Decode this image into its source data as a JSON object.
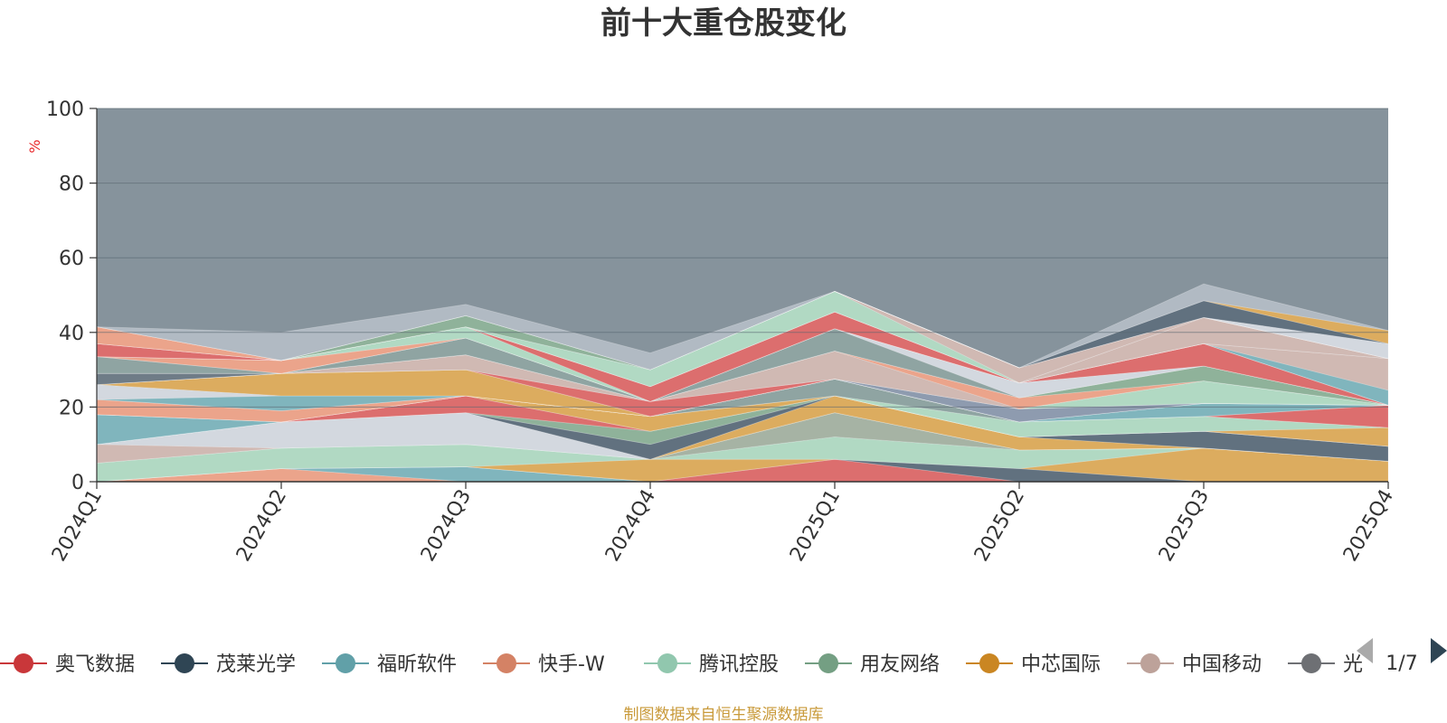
{
  "chart_data": {
    "type": "area",
    "title": "前十大重仓股变化",
    "ylabel": "%",
    "ylim": [
      0,
      100
    ],
    "y_ticks": [
      "0",
      "20",
      "40",
      "60",
      "80",
      "100"
    ],
    "categories": [
      "2024Q1",
      "2024Q2",
      "2024Q3",
      "2024Q4",
      "2025Q1",
      "2025Q2",
      "2025Q3",
      "2025Q4"
    ],
    "grid": true,
    "stacked": true,
    "background_color": "#86939c",
    "series": [
      {
        "name": "",
        "color": "#f0a48a",
        "values": [
          0,
          3.5,
          0,
          0,
          0,
          0,
          0,
          0
        ]
      },
      {
        "name": "",
        "color": "#7fb6bf",
        "values": [
          0,
          0,
          4,
          0,
          0,
          0,
          0,
          0
        ]
      },
      {
        "name": "",
        "color": "#e06c6c",
        "values": [
          0,
          0,
          0,
          0,
          6,
          0,
          0,
          0
        ]
      },
      {
        "name": "",
        "color": "#5f6f7d",
        "values": [
          0,
          0,
          0,
          0,
          0,
          3.5,
          0,
          0
        ]
      },
      {
        "name": "",
        "color": "#e0ad5c",
        "values": [
          0,
          0,
          0,
          6,
          0,
          0,
          9,
          5.5
        ]
      },
      {
        "name": "",
        "color": "#b3dcc5",
        "values": [
          5,
          5.5,
          6,
          0,
          6,
          5,
          0,
          0
        ]
      },
      {
        "name": "",
        "color": "#a8b4a4",
        "values": [
          0,
          0,
          0,
          0,
          6.5,
          0,
          0,
          0
        ]
      },
      {
        "name": "",
        "color": "#d4bab4",
        "values": [
          5,
          0,
          0,
          0,
          0,
          0,
          0,
          0
        ]
      },
      {
        "name": "",
        "color": "#d7dbe3",
        "values": [
          0,
          7,
          8.5,
          0,
          0,
          0,
          0,
          0
        ]
      },
      {
        "name": "",
        "color": "#e0ad5c",
        "values": [
          0,
          0,
          0,
          0,
          4.5,
          3.5,
          0,
          0
        ]
      },
      {
        "name": "",
        "color": "#5f6f7d",
        "values": [
          0,
          0,
          0,
          4,
          0,
          0,
          4.5,
          4
        ]
      },
      {
        "name": "",
        "color": "#8fb39a",
        "values": [
          0,
          0,
          0,
          3.5,
          0,
          0,
          0,
          0
        ]
      },
      {
        "name": "",
        "color": "#e06c6c",
        "values": [
          0,
          0,
          4.5,
          0,
          0,
          0,
          0,
          0
        ]
      },
      {
        "name": "",
        "color": "#7fb6bf",
        "values": [
          8,
          0,
          0,
          0,
          0,
          0,
          0,
          0
        ]
      },
      {
        "name": "",
        "color": "#e0ad5c",
        "values": [
          0,
          0,
          0,
          4,
          0,
          0,
          0,
          5
        ]
      },
      {
        "name": "",
        "color": "#b3dcc5",
        "values": [
          0,
          0,
          0,
          0,
          0,
          4,
          4,
          0
        ]
      },
      {
        "name": "",
        "color": "#8fa4a2",
        "values": [
          0,
          0,
          0,
          0,
          4.5,
          0,
          0,
          0
        ]
      },
      {
        "name": "",
        "color": "#e06c6c",
        "values": [
          0,
          0,
          0,
          0,
          0,
          0,
          0,
          6
        ]
      },
      {
        "name": "",
        "color": "#f0a48a",
        "values": [
          4,
          3,
          0,
          0,
          0,
          0,
          0,
          0
        ]
      },
      {
        "name": "",
        "color": "#7fb6bf",
        "values": [
          0,
          0,
          0,
          0,
          0,
          0,
          3.5,
          0
        ]
      },
      {
        "name": "",
        "color": "#7fb6bf",
        "values": [
          0,
          4,
          0,
          0,
          0,
          0,
          0,
          0
        ]
      },
      {
        "name": "",
        "color": "#d7dbe3",
        "values": [
          4,
          0,
          0,
          0,
          0,
          0,
          0,
          0
        ]
      },
      {
        "name": "",
        "color": "#e0ad5c",
        "values": [
          0,
          6,
          7,
          0,
          0,
          0,
          0,
          0
        ]
      },
      {
        "name": "",
        "color": "#8e9bb0",
        "values": [
          0,
          0,
          0,
          0,
          0,
          3.5,
          0,
          0
        ]
      },
      {
        "name": "",
        "color": "#e06c6c",
        "values": [
          0,
          0,
          0,
          4,
          0,
          0,
          0,
          0
        ]
      },
      {
        "name": "",
        "color": "#b3dcc5",
        "values": [
          0,
          0,
          0,
          0,
          0,
          0,
          6,
          0
        ]
      },
      {
        "name": "",
        "color": "#d4bab4",
        "values": [
          0,
          0,
          4,
          0,
          7.5,
          0,
          0,
          0
        ]
      },
      {
        "name": "",
        "color": "#f0a48a",
        "values": [
          0,
          0,
          0,
          0,
          0,
          3,
          0,
          0
        ]
      },
      {
        "name": "",
        "color": "#8fb39a",
        "values": [
          0,
          0,
          0,
          0,
          0,
          0,
          4,
          0
        ]
      },
      {
        "name": "",
        "color": "#6e7a86",
        "values": [
          3,
          0,
          0,
          0,
          0,
          0,
          0,
          0
        ]
      },
      {
        "name": "",
        "color": "#8fa4a2",
        "values": [
          0,
          0,
          4.5,
          0,
          6,
          0,
          0,
          0
        ]
      },
      {
        "name": "",
        "color": "#d7dbe3",
        "values": [
          0,
          0,
          0,
          0,
          0,
          4,
          0,
          0
        ]
      },
      {
        "name": "",
        "color": "#8fa4a2",
        "values": [
          4.5,
          0,
          0,
          0,
          0,
          0,
          0,
          0
        ]
      },
      {
        "name": "",
        "color": "#e06c6c",
        "values": [
          0,
          0,
          0,
          0,
          0,
          0,
          6,
          0
        ]
      },
      {
        "name": "",
        "color": "#f0a48a",
        "values": [
          0,
          3.5,
          0,
          0,
          0,
          0,
          0,
          0
        ]
      },
      {
        "name": "",
        "color": "#b3dcc5",
        "values": [
          0,
          0,
          3,
          0,
          0,
          0,
          0,
          0
        ]
      },
      {
        "name": "",
        "color": "#e06c6c",
        "values": [
          0,
          0,
          0,
          4,
          4.5,
          0,
          0,
          0
        ]
      },
      {
        "name": "",
        "color": "#7fb6bf",
        "values": [
          0,
          0,
          0,
          0,
          0,
          0,
          0,
          4
        ]
      },
      {
        "name": "",
        "color": "#d4bab4",
        "values": [
          0,
          0,
          0,
          0,
          0,
          0,
          0,
          8.5
        ]
      },
      {
        "name": "",
        "color": "#e06c6c",
        "values": [
          3.5,
          0,
          0,
          0,
          0,
          0,
          0,
          0
        ]
      },
      {
        "name": "",
        "color": "#d4bab4",
        "values": [
          0,
          0,
          0,
          0,
          0,
          0,
          7,
          0
        ]
      },
      {
        "name": "",
        "color": "#b3dcc5",
        "values": [
          0,
          0,
          0,
          4.5,
          5.5,
          0,
          0,
          0
        ]
      },
      {
        "name": "",
        "color": "#d4bab4",
        "values": [
          0,
          0,
          0,
          0,
          0,
          4,
          0,
          0
        ]
      },
      {
        "name": "",
        "color": "#8fb39a",
        "values": [
          0,
          0,
          3,
          0,
          0,
          0,
          0,
          0
        ]
      },
      {
        "name": "",
        "color": "#f0a48a",
        "values": [
          4.5,
          0,
          0,
          0,
          0,
          0,
          0,
          0
        ]
      },
      {
        "name": "",
        "color": "#d7dbe3",
        "values": [
          0,
          0,
          0,
          0,
          0,
          0,
          0,
          4
        ]
      },
      {
        "name": "",
        "color": "#5f6f7d",
        "values": [
          0,
          0,
          0,
          0,
          0,
          0,
          4.5,
          0
        ]
      },
      {
        "name": "",
        "color": "#e0ad5c",
        "values": [
          0,
          0,
          0,
          0,
          0,
          0,
          0,
          3.5
        ]
      },
      {
        "name": "",
        "color": "#b3bcc5",
        "values": [
          0,
          7.5,
          3,
          4.5,
          0,
          0,
          4.5,
          0
        ]
      }
    ]
  },
  "legend": {
    "items": [
      {
        "label": "奥飞数据",
        "color": "#c9373a"
      },
      {
        "label": "茂莱光学",
        "color": "#2f4554"
      },
      {
        "label": "福昕软件",
        "color": "#61a0a8"
      },
      {
        "label": "快手-W",
        "color": "#d48265"
      },
      {
        "label": "腾讯控股",
        "color": "#91c7ae"
      },
      {
        "label": "用友网络",
        "color": "#749f83"
      },
      {
        "label": "中芯国际",
        "color": "#ca8622"
      },
      {
        "label": "中国移动",
        "color": "#bda29a"
      },
      {
        "label": "光",
        "color": "#6e7074"
      }
    ],
    "page": "1/7",
    "prev_color": "#aaaaaa",
    "next_color": "#2f4554"
  },
  "source": {
    "text": "制图数据来自恒生聚源数据库",
    "color": "#c99a3a"
  },
  "unit_color": "#e8282b"
}
